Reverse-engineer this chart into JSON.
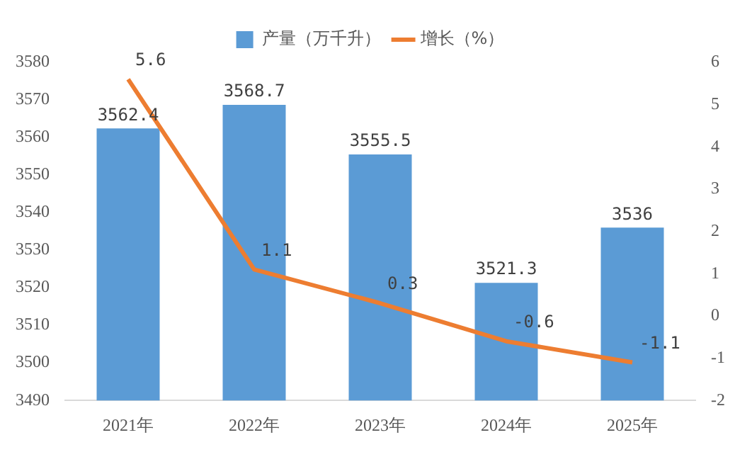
{
  "chart_data": {
    "type": "bar",
    "categories": [
      "2021年",
      "2022年",
      "2023年",
      "2024年",
      "2025年"
    ],
    "series": [
      {
        "name": "产量（万千升）",
        "color": "#5b9bd5",
        "values": [
          3562.4,
          3568.7,
          3555.5,
          3521.3,
          3536
        ]
      },
      {
        "name": "增长（%）",
        "type": "line",
        "axis": "y2",
        "color": "#ed7d31",
        "values": [
          5.6,
          1.1,
          0.3,
          -0.6,
          -1.1
        ]
      }
    ],
    "ylim": [
      3490,
      3580
    ],
    "yticks": [
      3490,
      3500,
      3510,
      3520,
      3530,
      3540,
      3550,
      3560,
      3570,
      3580
    ],
    "y2lim": [
      -2,
      6
    ],
    "y2ticks": [
      -2,
      -1,
      0,
      1,
      2,
      3,
      4,
      5,
      6
    ],
    "legend": "top",
    "data_labels": true,
    "marker": "none"
  }
}
